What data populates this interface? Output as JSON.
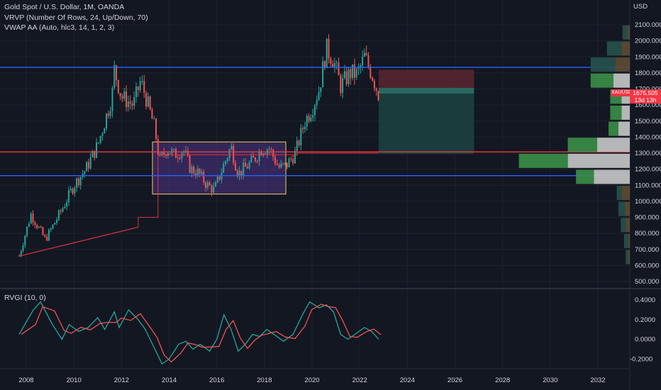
{
  "legend": {
    "title": "Gold Spot / U.S. Dollar, 1M, OANDA",
    "indicator_1": "VRVP (Number Of Rows, 24, Up/Down, 70)",
    "indicator_2": "VWAP AA (Auto, hlc3, 14, 1, 2, 3)",
    "oscillator": "RVGI (10, 0)"
  },
  "price_axis": {
    "currency": "USD",
    "ticks": [
      "2100.000",
      "2000.000",
      "1900.000",
      "1800.000",
      "1700.000",
      "1600.000",
      "1500.000",
      "1400.000",
      "1300.000",
      "1200.000",
      "1100.000",
      "1000.000",
      "900.000",
      "800.000",
      "700.000",
      "600.000",
      "500.000"
    ]
  },
  "osc_axis": {
    "ticks": [
      "0.4000",
      "0.2000",
      "0.0000",
      "-0.2000"
    ]
  },
  "time_axis": {
    "ticks": [
      "2008",
      "2010",
      "2012",
      "2014",
      "2016",
      "2018",
      "2020",
      "2022",
      "2024",
      "2026",
      "2028",
      "2030",
      "2032"
    ]
  },
  "current_price": {
    "symbol": "XAUUSD",
    "value": "1675.505",
    "countdown": "13d 13h"
  },
  "colors": {
    "background": "#131722",
    "up": "#26a69a",
    "down": "#ef5350",
    "blue_line": "#2962ff",
    "red_line": "#f23645",
    "box_border": "#f0d060",
    "box_fill": "#5b3a9b",
    "stop_fill": "#5c2730",
    "target_fill": "#1d4a46",
    "vol_up": "#3b8f47",
    "vol_down": "#c8c8c8",
    "vol_dark_up": "#27524d",
    "vol_dark_down": "#5e4b34"
  },
  "chart_data": {
    "type": "candlestick",
    "symbol": "XAUUSD",
    "timeframe": "1M",
    "title": "Gold Spot / U.S. Dollar, 1M, OANDA",
    "x_range": [
      2007.5,
      2033.5
    ],
    "y_range": [
      470,
      2170
    ],
    "price_path": [
      [
        2007.7,
        660
      ],
      [
        2008.2,
        920
      ],
      [
        2008.8,
        760
      ],
      [
        2009.5,
        950
      ],
      [
        2010.0,
        1100
      ],
      [
        2010.5,
        1200
      ],
      [
        2011.0,
        1350
      ],
      [
        2011.6,
        1650
      ],
      [
        2011.7,
        1820
      ],
      [
        2012.0,
        1650
      ],
      [
        2012.5,
        1600
      ],
      [
        2012.8,
        1750
      ],
      [
        2013.0,
        1660
      ],
      [
        2013.4,
        1450
      ],
      [
        2013.6,
        1250
      ],
      [
        2013.9,
        1330
      ],
      [
        2014.2,
        1290
      ],
      [
        2014.6,
        1320
      ],
      [
        2014.9,
        1200
      ],
      [
        2015.2,
        1180
      ],
      [
        2015.6,
        1100
      ],
      [
        2015.9,
        1070
      ],
      [
        2016.3,
        1230
      ],
      [
        2016.6,
        1340
      ],
      [
        2016.9,
        1170
      ],
      [
        2017.5,
        1250
      ],
      [
        2017.9,
        1330
      ],
      [
        2018.2,
        1330
      ],
      [
        2018.6,
        1210
      ],
      [
        2018.9,
        1220
      ],
      [
        2019.3,
        1300
      ],
      [
        2019.7,
        1500
      ],
      [
        2020.0,
        1580
      ],
      [
        2020.3,
        1700
      ],
      [
        2020.6,
        1950
      ],
      [
        2020.9,
        1880
      ],
      [
        2021.2,
        1720
      ],
      [
        2021.6,
        1800
      ],
      [
        2021.9,
        1790
      ],
      [
        2022.2,
        1900
      ],
      [
        2022.5,
        1800
      ],
      [
        2022.8,
        1660
      ]
    ],
    "horizontal_levels": [
      {
        "price": 1835,
        "color": "#2962ff"
      },
      {
        "price": 1308,
        "color": "#f23645"
      },
      {
        "price": 1160,
        "color": "#2962ff"
      }
    ],
    "range_box": {
      "x": [
        2013.3,
        2018.9
      ],
      "y": [
        1045,
        1370
      ]
    },
    "position": {
      "entry": 1698,
      "stop": 1820,
      "target": 1295,
      "x": [
        2022.8,
        2026.8
      ]
    },
    "oscillator": {
      "name": "RVGI (10, 0)",
      "y_range": [
        -0.3,
        0.45
      ],
      "values": [
        [
          2007.7,
          0.05
        ],
        [
          2008.3,
          0.3
        ],
        [
          2008.6,
          0.38
        ],
        [
          2009.1,
          0.15
        ],
        [
          2009.5,
          0.0
        ],
        [
          2009.8,
          0.15
        ],
        [
          2010.2,
          0.08
        ],
        [
          2010.6,
          0.12
        ],
        [
          2011.0,
          0.22
        ],
        [
          2011.3,
          0.1
        ],
        [
          2011.7,
          0.28
        ],
        [
          2011.9,
          0.12
        ],
        [
          2012.3,
          0.3
        ],
        [
          2012.7,
          0.2
        ],
        [
          2013.0,
          0.1
        ],
        [
          2013.4,
          -0.1
        ],
        [
          2013.7,
          -0.25
        ],
        [
          2014.0,
          -0.2
        ],
        [
          2014.4,
          -0.05
        ],
        [
          2014.7,
          -0.02
        ],
        [
          2015.0,
          -0.1
        ],
        [
          2015.3,
          -0.05
        ],
        [
          2015.7,
          -0.12
        ],
        [
          2016.0,
          0.0
        ],
        [
          2016.3,
          0.25
        ],
        [
          2016.6,
          0.1
        ],
        [
          2016.9,
          -0.12
        ],
        [
          2017.2,
          -0.05
        ],
        [
          2017.5,
          0.05
        ],
        [
          2017.8,
          0.03
        ],
        [
          2018.1,
          0.1
        ],
        [
          2018.4,
          0.05
        ],
        [
          2018.8,
          -0.02
        ],
        [
          2019.2,
          0.05
        ],
        [
          2019.6,
          0.25
        ],
        [
          2019.9,
          0.38
        ],
        [
          2020.3,
          0.32
        ],
        [
          2020.6,
          0.35
        ],
        [
          2020.9,
          0.28
        ],
        [
          2021.2,
          0.05
        ],
        [
          2021.5,
          0.0
        ],
        [
          2021.8,
          0.05
        ],
        [
          2022.2,
          0.12
        ],
        [
          2022.5,
          0.08
        ],
        [
          2022.8,
          0.0
        ]
      ]
    },
    "volume_profile": [
      {
        "price": 2050,
        "up": 6,
        "down": 3,
        "dark": true
      },
      {
        "price": 1950,
        "up": 18,
        "down": 10,
        "dark": true
      },
      {
        "price": 1850,
        "up": 30,
        "down": 18,
        "dark": true
      },
      {
        "price": 1750,
        "up": 28,
        "down": 20,
        "dark": false
      },
      {
        "price": 1650,
        "up": 14,
        "down": 10,
        "dark": false
      },
      {
        "price": 1550,
        "up": 14,
        "down": 10,
        "dark": false
      },
      {
        "price": 1450,
        "up": 12,
        "down": 14,
        "dark": false
      },
      {
        "price": 1350,
        "up": 36,
        "down": 40,
        "dark": false
      },
      {
        "price": 1250,
        "up": 60,
        "down": 76,
        "dark": false
      },
      {
        "price": 1150,
        "up": 22,
        "down": 44,
        "dark": false
      },
      {
        "price": 1050,
        "up": 6,
        "down": 10,
        "dark": true
      },
      {
        "price": 950,
        "up": 8,
        "down": 6,
        "dark": true
      },
      {
        "price": 850,
        "up": 6,
        "down": 5,
        "dark": true
      },
      {
        "price": 750,
        "up": 5,
        "down": 2,
        "dark": true
      },
      {
        "price": 650,
        "up": 3,
        "down": 2,
        "dark": true
      }
    ]
  }
}
